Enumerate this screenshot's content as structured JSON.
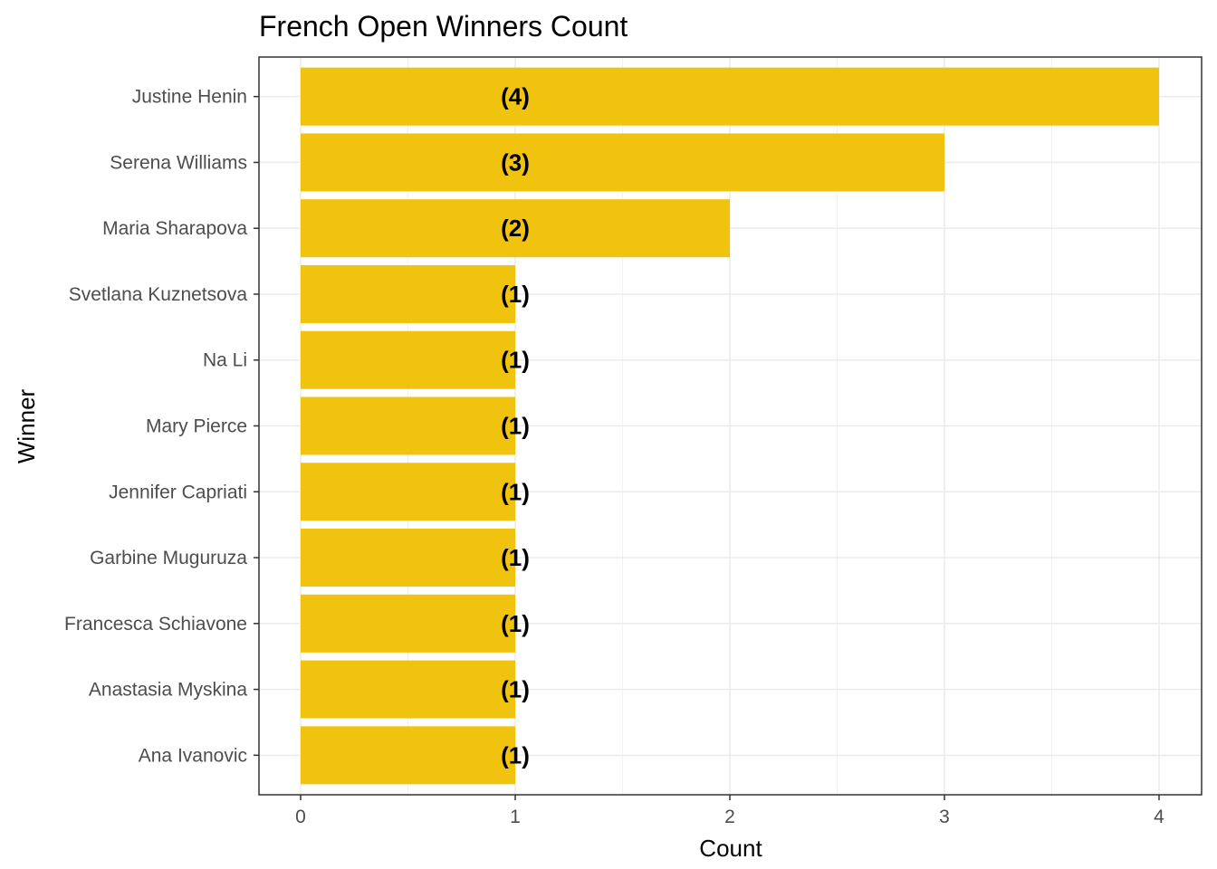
{
  "chart_data": {
    "type": "bar",
    "orientation": "horizontal",
    "title": "French Open Winners Count",
    "xlabel": "Count",
    "ylabel": "Winner",
    "categories": [
      "Justine Henin",
      "Serena Williams",
      "Maria Sharapova",
      "Svetlana Kuznetsova",
      "Na Li",
      "Mary Pierce",
      "Jennifer Capriati",
      "Garbine Muguruza",
      "Francesca Schiavone",
      "Anastasia Myskina",
      "Ana Ivanovic"
    ],
    "values": [
      4,
      3,
      2,
      1,
      1,
      1,
      1,
      1,
      1,
      1,
      1
    ],
    "data_labels": [
      "(4)",
      "(3)",
      "(2)",
      "(1)",
      "(1)",
      "(1)",
      "(1)",
      "(1)",
      "(1)",
      "(1)",
      "(1)"
    ],
    "x_ticks": [
      "0",
      "1",
      "2",
      "3",
      "4"
    ],
    "xlim": [
      0,
      4
    ],
    "grid": true,
    "bar_color": "#F0C30F"
  }
}
